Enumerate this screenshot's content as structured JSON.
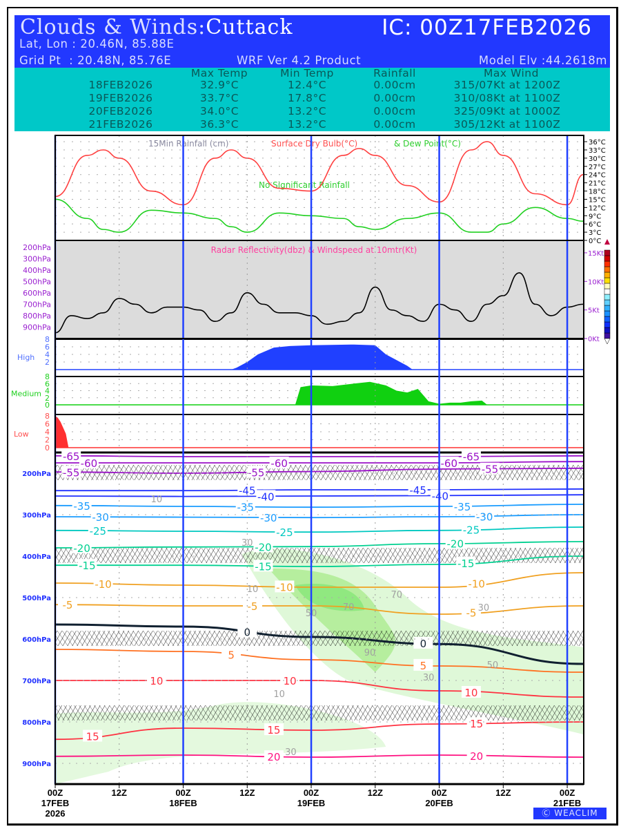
{
  "header": {
    "title_prefix": "Clouds & Winds:",
    "station": "Cuttack",
    "ic": "IC: 00Z17FEB2026",
    "latlon": "Lat, Lon : 20.46N, 85.88E",
    "gridpt": "Grid Pt  : 20.48N, 85.76E",
    "product": "WRF Ver 4.2 Product",
    "elev": "Model Elv :44.2618m"
  },
  "summary": {
    "columns": [
      "Max Temp",
      "Min Temp",
      "Rainfall",
      "Max Wind"
    ],
    "rows": [
      {
        "date": "18FEB2026",
        "max": "32.9°C",
        "min": "12.4°C",
        "rain": "0.00cm",
        "wind": "315/07Kt at 1200Z"
      },
      {
        "date": "19FEB2026",
        "max": "33.7°C",
        "min": "17.8°C",
        "rain": "0.00cm",
        "wind": "310/08Kt at 1100Z"
      },
      {
        "date": "20FEB2026",
        "max": "34.0°C",
        "min": "13.2°C",
        "rain": "0.00cm",
        "wind": "325/09Kt at 1000Z"
      },
      {
        "date": "21FEB2026",
        "max": "36.3°C",
        "min": "13.2°C",
        "rain": "0.00cm",
        "wind": "305/12Kt at 1100Z"
      }
    ]
  },
  "logo": "WEACLIM",
  "chart_data": [
    {
      "type": "line",
      "title": "15Min Rainfall (cm)   Surface Dry Bulb(°C)   & Dew Point(°C)",
      "title_parts": [
        "15Min Rainfall (cm)",
        "Surface Dry Bulb(°C)",
        "& Dew Point(°C)"
      ],
      "annotation": "No Significant Rainfall",
      "x_hours": [
        0,
        6,
        9,
        12,
        18,
        24,
        30,
        33,
        36,
        42,
        48,
        54,
        57,
        60,
        66,
        72,
        78,
        81,
        84,
        90,
        96,
        99
      ],
      "series": [
        {
          "name": "Surface Dry Bulb",
          "color": "#ff4040",
          "values": [
            16,
            31,
            33,
            30,
            18,
            13,
            30,
            33,
            30,
            19,
            18,
            31,
            33.5,
            31,
            20,
            14,
            33,
            36,
            31,
            17,
            13,
            24
          ]
        },
        {
          "name": "Dew Point",
          "color": "#20d020",
          "values": [
            15,
            8,
            4,
            3,
            11,
            10,
            8,
            5,
            3,
            10,
            9,
            8,
            5,
            4,
            8,
            10,
            3,
            3,
            6,
            12,
            8,
            7
          ]
        }
      ],
      "ylim": [
        0,
        37
      ],
      "yticks": [
        "0°C",
        "3°C",
        "6°C",
        "9°C",
        "12°C",
        "15°C",
        "18°C",
        "21°C",
        "24°C",
        "27°C",
        "30°C",
        "33°C",
        "36°C"
      ]
    },
    {
      "type": "line",
      "title": "Radar Reflectivity(dbz) & Windspeed at 10mtr(Kt)",
      "left_ticks": [
        "200hPa",
        "300hPa",
        "400hPa",
        "500hPa",
        "600hPa",
        "700hPa",
        "800hPa",
        "900hPa"
      ],
      "right_ticks": [
        "0Kt",
        "5Kt",
        "10Kt",
        "15Kt"
      ],
      "x_hours": [
        0,
        3,
        6,
        9,
        12,
        15,
        18,
        21,
        24,
        27,
        30,
        33,
        36,
        39,
        42,
        45,
        48,
        51,
        54,
        57,
        60,
        63,
        66,
        69,
        72,
        75,
        78,
        81,
        84,
        87,
        90,
        93,
        96,
        99
      ],
      "series": [
        {
          "name": "Windspeed 10m",
          "color": "#000000",
          "values": [
            1,
            4,
            3.5,
            4.5,
            7,
            6,
            4.5,
            5.5,
            5.5,
            5,
            3,
            4.5,
            8,
            6,
            4.5,
            4.5,
            4,
            2.5,
            3,
            4.5,
            9,
            5,
            4,
            3,
            6,
            5,
            3,
            6,
            7.5,
            11.5,
            6,
            4,
            5.5,
            6
          ]
        }
      ],
      "ylim": [
        0,
        16
      ]
    },
    {
      "type": "area",
      "name": "High",
      "yticks": [
        "2",
        "4",
        "6",
        "8"
      ],
      "color": "#2040ff",
      "x_hours": [
        0,
        33,
        34,
        36,
        38,
        41,
        44,
        48,
        56,
        60,
        62,
        64,
        66,
        67,
        99
      ],
      "values": [
        0,
        0,
        0.5,
        2,
        4,
        5.8,
        6.2,
        6.4,
        6.6,
        6.4,
        4,
        2.5,
        1,
        0,
        0
      ]
    },
    {
      "type": "area",
      "name": "Medium",
      "yticks": [
        "0",
        "2",
        "4",
        "6",
        "8"
      ],
      "color": "#10d010",
      "x_hours": [
        0,
        45,
        46,
        48,
        52,
        56,
        59,
        62,
        64,
        66,
        68,
        70,
        72,
        74,
        76,
        78,
        80,
        81,
        99
      ],
      "values": [
        0,
        0,
        5,
        5.5,
        5.3,
        6,
        6.5,
        5.5,
        4,
        3.5,
        4.5,
        1,
        0.3,
        0.6,
        0.6,
        1,
        1.2,
        0,
        0
      ]
    },
    {
      "type": "area",
      "name": "Low",
      "yticks": [
        "0",
        "2",
        "4",
        "6",
        "8"
      ],
      "color": "#ff3030",
      "x_hours": [
        0,
        0.5,
        1,
        1.5,
        2,
        2.5,
        99
      ],
      "values": [
        8,
        7.5,
        6.5,
        5,
        3.5,
        0,
        0
      ]
    },
    {
      "type": "contour",
      "title": "Pressure-time cross section",
      "yticks": [
        "200hPa",
        "300hPa",
        "400hPa",
        "500hPa",
        "600hPa",
        "700hPa",
        "800hPa",
        "900hPa"
      ],
      "x_hours": [
        0,
        24,
        48,
        72,
        99
      ],
      "isotherms": [
        {
          "label": "-65",
          "color": "#9a10c8",
          "hPa": [
            158,
            160,
            160,
            160,
            158
          ],
          "at": [
            3,
            78
          ]
        },
        {
          "label": "-60",
          "color": "#9a10c8",
          "hPa": [
            175,
            175,
            175,
            175,
            172
          ],
          "at": [
            4,
            42,
            75
          ]
        },
        {
          "label": "-55",
          "color": "#9a10c8",
          "hPa": [
            197,
            200,
            196,
            190,
            188
          ],
          "at": [
            3,
            40,
            78
          ]
        },
        {
          "label": "-45",
          "color": "#2030ff",
          "hPa": [
            242,
            242,
            240,
            240,
            238
          ],
          "at": [
            36,
            68
          ]
        },
        {
          "label": "-40",
          "color": "#2030ff",
          "hPa": [
            255,
            256,
            255,
            254,
            252
          ],
          "at": [
            36,
            71
          ]
        },
        {
          "label": "-35",
          "color": "#1a9cff",
          "hPa": [
            278,
            280,
            282,
            280,
            275
          ],
          "at": [
            5,
            38,
            74
          ]
        },
        {
          "label": "-30",
          "color": "#1a9cff",
          "hPa": [
            305,
            306,
            307,
            305,
            300
          ],
          "at": [
            5,
            40,
            77
          ]
        },
        {
          "label": "-25",
          "color": "#00c8c0",
          "hPa": [
            338,
            340,
            342,
            338,
            330
          ],
          "at": [
            8,
            43,
            78
          ]
        },
        {
          "label": "-20",
          "color": "#00d090",
          "hPa": [
            380,
            378,
            377,
            370,
            365
          ],
          "at": [
            5,
            39,
            75
          ]
        },
        {
          "label": "-15",
          "color": "#00d090",
          "hPa": [
            422,
            422,
            425,
            420,
            400
          ],
          "at": [
            6,
            39,
            77
          ]
        },
        {
          "label": "-10",
          "color": "#f0a020",
          "hPa": [
            465,
            470,
            475,
            475,
            440
          ],
          "at": [
            9,
            43,
            79
          ]
        },
        {
          "label": "-5",
          "color": "#f0a020",
          "hPa": [
            517,
            520,
            520,
            540,
            520
          ],
          "at": [
            0,
            37,
            78
          ]
        },
        {
          "label": "0",
          "color": "#102030",
          "hPa": [
            565,
            570,
            595,
            612,
            660
          ],
          "at": [
            36,
            69
          ]
        },
        {
          "label": "5",
          "color": "#ff7020",
          "hPa": [
            625,
            630,
            650,
            665,
            680
          ],
          "at": [
            33,
            69
          ]
        },
        {
          "label": "10",
          "color": "#ff3040",
          "hPa": [
            700,
            700,
            700,
            725,
            740
          ],
          "at": [
            19,
            44,
            78
          ]
        },
        {
          "label": "15",
          "color": "#ff3040",
          "hPa": [
            842,
            815,
            820,
            805,
            800
          ],
          "at": [
            7,
            41,
            79
          ]
        },
        {
          "label": "20",
          "color": "#ff1080",
          "hPa": [
            883,
            880,
            885,
            880,
            885
          ],
          "at": [
            41,
            79
          ]
        }
      ],
      "rh_labels": [
        {
          "text": "10",
          "hour": 19,
          "hPa": 270
        },
        {
          "text": "10",
          "hour": 37,
          "hPa": 487
        },
        {
          "text": "30",
          "hour": 36,
          "hPa": 375
        },
        {
          "text": "70",
          "hour": 55,
          "hPa": 530
        },
        {
          "text": "50",
          "hour": 48,
          "hPa": 545
        },
        {
          "text": "70",
          "hour": 64,
          "hPa": 500
        },
        {
          "text": "90",
          "hour": 59,
          "hPa": 640
        },
        {
          "text": "30",
          "hour": 78,
          "hPa": 532
        },
        {
          "text": "50",
          "hour": 82,
          "hPa": 670
        },
        {
          "text": "30",
          "hour": 70,
          "hPa": 700
        },
        {
          "text": "10",
          "hour": 42,
          "hPa": 740
        },
        {
          "text": "30",
          "hour": 43,
          "hPa": 880
        }
      ],
      "wind_levels_hPa": [
        200,
        400,
        600,
        780
      ]
    },
    {
      "type": "xaxis",
      "ticks": [
        {
          "h": 0,
          "l": [
            "00Z",
            "17FEB",
            "2026"
          ]
        },
        {
          "h": 12,
          "l": [
            "12Z"
          ]
        },
        {
          "h": 24,
          "l": [
            "00Z",
            "18FEB"
          ]
        },
        {
          "h": 36,
          "l": [
            "12Z"
          ]
        },
        {
          "h": 48,
          "l": [
            "00Z",
            "19FEB"
          ]
        },
        {
          "h": 60,
          "l": [
            "12Z"
          ]
        },
        {
          "h": 72,
          "l": [
            "00Z",
            "20FEB"
          ]
        },
        {
          "h": 84,
          "l": [
            "12Z"
          ]
        },
        {
          "h": 96,
          "l": [
            "00Z",
            "21FEB"
          ]
        }
      ]
    }
  ],
  "colors": {
    "header": "#2238ff",
    "table": "#00c8c8",
    "daylines": "#2040ff"
  }
}
